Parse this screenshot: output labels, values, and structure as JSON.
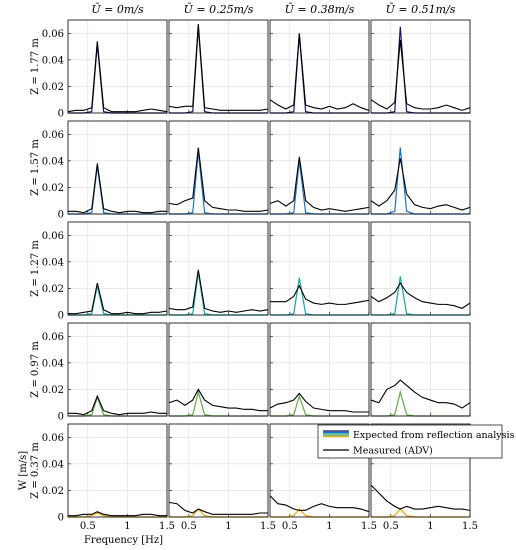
{
  "chart_data": {
    "type": "line",
    "xlabel": "Frequency [Hz]",
    "ylabel_bottom": "W [m/s]",
    "ylim": [
      0,
      0.07
    ],
    "yticks": [
      0,
      0.02,
      0.04,
      0.06
    ],
    "ytick_labels": [
      "0",
      "0.02",
      "0.04",
      "0.06"
    ],
    "xlim": [
      0.25,
      1.5
    ],
    "xticks": [
      0.5,
      1,
      1.5
    ],
    "xtick_labels": [
      "0.5",
      "1",
      "1.5"
    ],
    "grid": true,
    "columns": [
      "Ū = 0m/s",
      "Ū = 0.25m/s",
      "Ū = 0.38m/s",
      "Ū = 0.51m/s"
    ],
    "rows": [
      "Z = 1.77 m",
      "Z = 1.57 m",
      "Z = 1.27 m",
      "Z = 0.97 m",
      "Z = 0.37 m"
    ],
    "legend": {
      "location": "upper-right of bottom-right panels",
      "expected_label": "Expected from reflection analysis",
      "measured_label": "Measured (ADV)"
    },
    "x": [
      0.25,
      0.35,
      0.45,
      0.55,
      0.62,
      0.7,
      0.8,
      0.9,
      1.0,
      1.1,
      1.2,
      1.3,
      1.4,
      1.5
    ],
    "row_colors": [
      "#1b1464",
      "#1f6fc4",
      "#17a6a6",
      "#6aa84f",
      "#e6a817"
    ],
    "panels": [
      [
        {
          "measured": [
            0.001,
            0.002,
            0.002,
            0.004,
            0.054,
            0.004,
            0.001,
            0.001,
            0.001,
            0.001,
            0.002,
            0.003,
            0.002,
            0.001
          ],
          "expected": [
            0,
            0,
            0,
            0.001,
            0.052,
            0.001,
            0,
            0,
            0,
            0,
            0,
            0,
            0,
            0
          ]
        },
        {
          "measured": [
            0.005,
            0.004,
            0.005,
            0.005,
            0.067,
            0.004,
            0.003,
            0.002,
            0.002,
            0.002,
            0.002,
            0.002,
            0.002,
            0.003
          ],
          "expected": [
            0,
            0,
            0,
            0.001,
            0.065,
            0.001,
            0,
            0,
            0,
            0,
            0,
            0,
            0,
            0
          ]
        },
        {
          "measured": [
            0.01,
            0.006,
            0.003,
            0.006,
            0.06,
            0.006,
            0.004,
            0.003,
            0.005,
            0.003,
            0.004,
            0.007,
            0.004,
            0.002
          ],
          "expected": [
            0,
            0,
            0,
            0.001,
            0.059,
            0.001,
            0,
            0,
            0,
            0,
            0,
            0,
            0,
            0
          ]
        },
        {
          "measured": [
            0.01,
            0.006,
            0.003,
            0.008,
            0.055,
            0.007,
            0.004,
            0.003,
            0.003,
            0.004,
            0.006,
            0.004,
            0.002,
            0.004
          ],
          "expected": [
            0,
            0,
            0,
            0.001,
            0.065,
            0.001,
            0,
            0,
            0,
            0,
            0,
            0,
            0,
            0
          ]
        }
      ],
      [
        {
          "measured": [
            0.002,
            0.002,
            0.001,
            0.004,
            0.038,
            0.004,
            0.002,
            0.001,
            0.002,
            0.002,
            0.001,
            0.001,
            0.002,
            0.002
          ],
          "expected": [
            0,
            0,
            0,
            0.001,
            0.036,
            0.001,
            0,
            0,
            0,
            0,
            0,
            0,
            0,
            0
          ]
        },
        {
          "measured": [
            0.008,
            0.007,
            0.01,
            0.012,
            0.05,
            0.01,
            0.005,
            0.004,
            0.003,
            0.003,
            0.002,
            0.002,
            0.002,
            0.003
          ],
          "expected": [
            0,
            0,
            0,
            0.001,
            0.047,
            0.001,
            0,
            0,
            0,
            0,
            0,
            0,
            0,
            0
          ]
        },
        {
          "measured": [
            0.008,
            0.01,
            0.006,
            0.01,
            0.043,
            0.01,
            0.005,
            0.003,
            0.004,
            0.003,
            0.002,
            0.003,
            0.004,
            0.005
          ],
          "expected": [
            0,
            0,
            0,
            0.001,
            0.04,
            0.001,
            0,
            0,
            0,
            0,
            0,
            0,
            0,
            0
          ]
        },
        {
          "measured": [
            0.01,
            0.006,
            0.01,
            0.018,
            0.042,
            0.015,
            0.007,
            0.005,
            0.004,
            0.006,
            0.007,
            0.005,
            0.003,
            0.005
          ],
          "expected": [
            0,
            0,
            0,
            0.002,
            0.05,
            0.002,
            0,
            0,
            0,
            0,
            0,
            0,
            0,
            0
          ]
        }
      ],
      [
        {
          "measured": [
            0.001,
            0.001,
            0.002,
            0.003,
            0.024,
            0.004,
            0.001,
            0.001,
            0.002,
            0.001,
            0.001,
            0.002,
            0.002,
            0.003
          ],
          "expected": [
            0,
            0,
            0,
            0.001,
            0.022,
            0.001,
            0,
            0,
            0,
            0,
            0,
            0,
            0,
            0
          ]
        },
        {
          "measured": [
            0.005,
            0.004,
            0.004,
            0.006,
            0.034,
            0.005,
            0.003,
            0.002,
            0.003,
            0.002,
            0.003,
            0.004,
            0.003,
            0.004
          ],
          "expected": [
            0,
            0,
            0,
            0.001,
            0.032,
            0.001,
            0,
            0,
            0,
            0,
            0,
            0,
            0,
            0
          ]
        },
        {
          "measured": [
            0.01,
            0.01,
            0.01,
            0.014,
            0.022,
            0.012,
            0.009,
            0.008,
            0.009,
            0.008,
            0.008,
            0.009,
            0.01,
            0.011
          ],
          "expected": [
            0,
            0,
            0,
            0.001,
            0.028,
            0.001,
            0,
            0,
            0,
            0,
            0,
            0,
            0,
            0
          ]
        },
        {
          "measured": [
            0.014,
            0.01,
            0.013,
            0.017,
            0.024,
            0.017,
            0.013,
            0.01,
            0.009,
            0.008,
            0.008,
            0.007,
            0.005,
            0.009
          ],
          "expected": [
            0,
            0,
            0,
            0.001,
            0.029,
            0.001,
            0,
            0,
            0,
            0,
            0,
            0,
            0,
            0
          ]
        }
      ],
      [
        {
          "measured": [
            0.002,
            0.002,
            0.001,
            0.004,
            0.015,
            0.004,
            0.002,
            0.001,
            0.002,
            0.002,
            0.002,
            0.003,
            0.002,
            0.002
          ],
          "expected": [
            0,
            0,
            0,
            0.001,
            0.014,
            0.001,
            0,
            0,
            0,
            0,
            0,
            0,
            0,
            0
          ]
        },
        {
          "measured": [
            0.01,
            0.012,
            0.008,
            0.012,
            0.02,
            0.012,
            0.008,
            0.007,
            0.006,
            0.006,
            0.005,
            0.005,
            0.004,
            0.004
          ],
          "expected": [
            0,
            0,
            0,
            0.001,
            0.018,
            0.001,
            0,
            0,
            0,
            0,
            0,
            0,
            0,
            0
          ]
        },
        {
          "measured": [
            0.006,
            0.009,
            0.01,
            0.012,
            0.017,
            0.011,
            0.006,
            0.005,
            0.004,
            0.004,
            0.004,
            0.003,
            0.003,
            0.003
          ],
          "expected": [
            0,
            0,
            0,
            0.001,
            0.015,
            0.001,
            0,
            0,
            0,
            0,
            0,
            0,
            0,
            0
          ]
        },
        {
          "measured": [
            0.012,
            0.01,
            0.02,
            0.023,
            0.027,
            0.023,
            0.018,
            0.014,
            0.012,
            0.01,
            0.01,
            0.009,
            0.006,
            0.01
          ],
          "expected": [
            0,
            0,
            0,
            0.001,
            0.018,
            0.001,
            0,
            0,
            0,
            0,
            0,
            0,
            0,
            0
          ]
        }
      ],
      [
        {
          "measured": [
            0.001,
            0.001,
            0.002,
            0.002,
            0.004,
            0.002,
            0.001,
            0.001,
            0.001,
            0.001,
            0.002,
            0.002,
            0.001,
            0.001
          ],
          "expected": [
            0,
            0,
            0,
            0.001,
            0.003,
            0.001,
            0,
            0,
            0,
            0,
            0,
            0,
            0,
            0
          ]
        },
        {
          "measured": [
            0.011,
            0.01,
            0.005,
            0.003,
            0.006,
            0.004,
            0.002,
            0.002,
            0.002,
            0.002,
            0.002,
            0.002,
            0.003,
            0.003
          ],
          "expected": [
            0,
            0,
            0,
            0.001,
            0.006,
            0.001,
            0,
            0,
            0,
            0,
            0,
            0,
            0,
            0
          ]
        },
        {
          "measured": [
            0.016,
            0.01,
            0.009,
            0.006,
            0.005,
            0.005,
            0.008,
            0.01,
            0.008,
            0.007,
            0.007,
            0.007,
            0.006,
            0.004
          ],
          "expected": [
            0,
            0,
            0,
            0.001,
            0.006,
            0.001,
            0,
            0,
            0,
            0,
            0,
            0,
            0,
            0
          ]
        },
        {
          "measured": [
            0.024,
            0.018,
            0.012,
            0.008,
            0.006,
            0.008,
            0.006,
            0.006,
            0.007,
            0.008,
            0.007,
            0.006,
            0.006,
            0.005
          ],
          "expected": [
            0,
            0,
            0,
            0.001,
            0.006,
            0.001,
            0,
            0,
            0,
            0,
            0,
            0,
            0,
            0
          ]
        }
      ]
    ]
  }
}
